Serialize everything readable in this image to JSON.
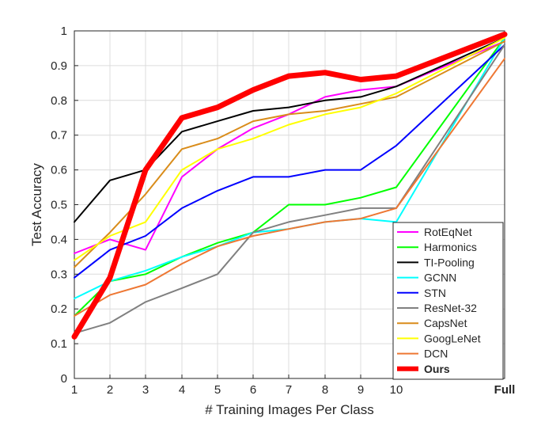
{
  "chart_data": {
    "type": "line",
    "xlabel": "# Training Images Per Class",
    "ylabel": "Test Accuracy",
    "x_ticks": [
      "1",
      "2",
      "3",
      "4",
      "5",
      "6",
      "7",
      "8",
      "9",
      "10",
      "Full"
    ],
    "ylim": [
      0,
      1
    ],
    "y_ticks": [
      "0",
      "0.1",
      "0.2",
      "0.3",
      "0.4",
      "0.5",
      "0.6",
      "0.7",
      "0.8",
      "0.9",
      "1"
    ],
    "grid": true,
    "legend_position": "bottom-right",
    "categories": [
      "1",
      "2",
      "3",
      "4",
      "5",
      "6",
      "7",
      "8",
      "9",
      "10",
      "Full"
    ],
    "series": [
      {
        "name": "RotEqNet",
        "color": "#ff00ff",
        "values": [
          0.36,
          0.4,
          0.37,
          0.58,
          0.66,
          0.72,
          0.76,
          0.81,
          0.83,
          0.84,
          0.97
        ]
      },
      {
        "name": "Harmonics",
        "color": "#00ff00",
        "values": [
          0.18,
          0.28,
          0.3,
          0.35,
          0.39,
          0.42,
          0.5,
          0.5,
          0.52,
          0.55,
          0.98
        ]
      },
      {
        "name": "TI-Pooling",
        "color": "#000000",
        "values": [
          0.45,
          0.57,
          0.6,
          0.71,
          0.74,
          0.77,
          0.78,
          0.8,
          0.81,
          0.84,
          0.98
        ]
      },
      {
        "name": "GCNN",
        "color": "#00ffff",
        "values": [
          0.23,
          0.28,
          0.31,
          0.35,
          0.38,
          0.42,
          0.43,
          0.45,
          0.46,
          0.45,
          0.98
        ]
      },
      {
        "name": "STN",
        "color": "#0000ff",
        "values": [
          0.29,
          0.37,
          0.41,
          0.49,
          0.54,
          0.58,
          0.58,
          0.6,
          0.6,
          0.67,
          0.96
        ]
      },
      {
        "name": "ResNet-32",
        "color": "#808080",
        "values": [
          0.13,
          0.16,
          0.22,
          0.26,
          0.3,
          0.42,
          0.45,
          0.47,
          0.49,
          0.49,
          0.96
        ]
      },
      {
        "name": "CapsNet",
        "color": "#d98c1a",
        "values": [
          0.32,
          0.42,
          0.53,
          0.66,
          0.69,
          0.74,
          0.76,
          0.77,
          0.79,
          0.81,
          0.97
        ]
      },
      {
        "name": "GoogLeNet",
        "color": "#ffff00",
        "values": [
          0.34,
          0.41,
          0.45,
          0.6,
          0.66,
          0.69,
          0.73,
          0.76,
          0.78,
          0.82,
          0.98
        ]
      },
      {
        "name": "DCN",
        "color": "#ee7733",
        "values": [
          0.18,
          0.24,
          0.27,
          0.33,
          0.38,
          0.41,
          0.43,
          0.45,
          0.46,
          0.49,
          0.92
        ]
      },
      {
        "name": "Ours",
        "color": "#ff0000",
        "bold": true,
        "values": [
          0.12,
          0.29,
          0.6,
          0.75,
          0.78,
          0.83,
          0.87,
          0.88,
          0.86,
          0.87,
          0.99
        ]
      }
    ]
  }
}
